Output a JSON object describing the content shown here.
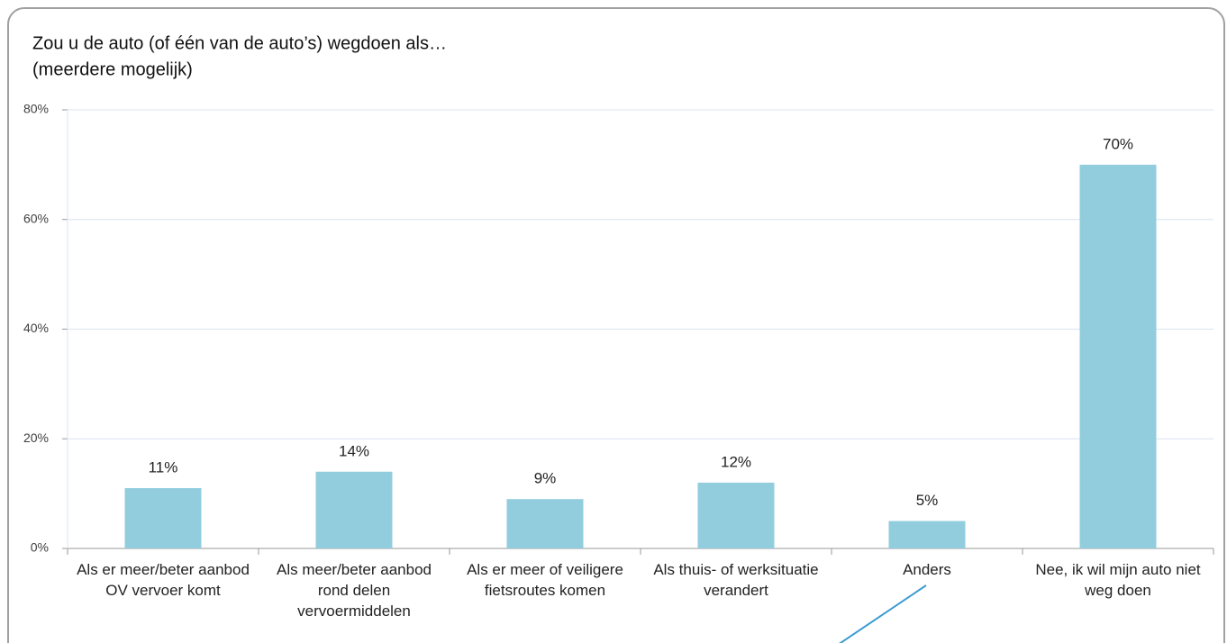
{
  "chart_data": {
    "type": "bar",
    "title": "Zou u de auto (of één van de auto’s) wegdoen als…",
    "subtitle": "(meerdere mogelijk)",
    "categories": [
      "Als er meer/beter aanbod OV vervoer komt",
      "Als meer/beter aanbod rond delen vervoermiddelen",
      "Als er meer of veiligere fietsroutes komen",
      "Als thuis- of werksituatie verandert",
      "Anders",
      "Nee, ik wil mijn auto niet weg doen"
    ],
    "values": [
      11,
      14,
      9,
      12,
      5,
      70
    ],
    "value_labels": [
      "11%",
      "14%",
      "9%",
      "12%",
      "5%",
      "70%"
    ],
    "color": "#92cddd",
    "ylim": [
      0,
      80
    ],
    "yticks": [
      {
        "value": 0,
        "label": "0%"
      },
      {
        "value": 20,
        "label": "20%"
      },
      {
        "value": 40,
        "label": "40%"
      },
      {
        "value": 60,
        "label": "60%"
      },
      {
        "value": 80,
        "label": "80%"
      }
    ],
    "grid": true
  }
}
